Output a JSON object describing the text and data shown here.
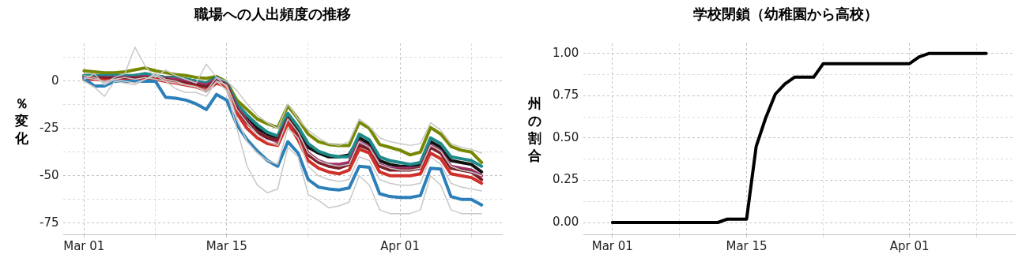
{
  "chart_data": [
    {
      "type": "line",
      "title": "職場への人出頻度の推移",
      "ylabel": "％変化",
      "legend": false,
      "grid": true,
      "marker": "none",
      "line_style": "solid",
      "x": [
        "--03-01",
        "--03-02",
        "--03-03",
        "--03-04",
        "--03-05",
        "--03-06",
        "--03-07",
        "--03-08",
        "--03-09",
        "--03-10",
        "--03-11",
        "--03-12",
        "--03-13",
        "--03-14",
        "--03-15",
        "--03-16",
        "--03-17",
        "--03-18",
        "--03-19",
        "--03-20",
        "--03-21",
        "--03-22",
        "--03-23",
        "--03-24",
        "--03-25",
        "--03-26",
        "--03-27",
        "--03-28",
        "--03-29",
        "--03-30",
        "--03-31",
        "--04-01",
        "--04-02",
        "--04-03",
        "--04-04",
        "--04-05",
        "--04-06",
        "--04-07",
        "--04-08",
        "--04-09"
      ],
      "xlim": [
        "--02-27",
        "--04-11"
      ],
      "xticks": [
        {
          "value": "--03-01",
          "label": "Mar 01"
        },
        {
          "value": "--03-08",
          "label": null
        },
        {
          "value": "--03-15",
          "label": "Mar 15"
        },
        {
          "value": "--03-23",
          "label": null
        },
        {
          "value": "--04-01",
          "label": "Apr 01"
        },
        {
          "value": "--04-08",
          "label": null
        }
      ],
      "ylim": [
        -81,
        20
      ],
      "yticks": [
        -75,
        {
          "value": -62.5,
          "label": null
        },
        -50,
        {
          "value": -37.5,
          "label": null
        },
        -25,
        {
          "value": -12.5,
          "label": null
        },
        0,
        {
          "value": 12.5,
          "label": null
        }
      ],
      "series": [
        {
          "color": "#c8c8c8",
          "values": [
            3,
            2,
            -1,
            2,
            4,
            18,
            8,
            2,
            6,
            3,
            1,
            -1,
            9,
            2,
            0,
            -5,
            -12,
            -18,
            -22,
            -25,
            -12,
            -20,
            -26,
            -30,
            -33,
            -34,
            -32,
            -20,
            -24,
            -30,
            -32,
            -33,
            -34,
            -33,
            -22,
            -26,
            -33,
            -35,
            -36,
            -38
          ]
        },
        {
          "color": "#c8c8c8",
          "values": [
            0,
            -3,
            -8,
            0,
            -1,
            -2,
            1,
            3,
            0,
            -4,
            -6,
            -6,
            -8,
            0,
            -5,
            -25,
            -45,
            -55,
            -59,
            -57,
            -35,
            -40,
            -60,
            -63,
            -67,
            -66,
            -64,
            -50,
            -55,
            -68,
            -70,
            -70,
            -70,
            -68,
            -50,
            -55,
            -68,
            -70,
            -70,
            -70
          ]
        },
        {
          "color": "#c8c8c8",
          "values": [
            1,
            4,
            -2,
            1,
            0,
            -1,
            1,
            4,
            1,
            0,
            -2,
            -3,
            -5,
            2,
            -3,
            -20,
            -32,
            -38,
            -42,
            -44,
            -25,
            -30,
            -45,
            -50,
            -52,
            -53,
            -52,
            -40,
            -42,
            -52,
            -54,
            -55,
            -55,
            -54,
            -40,
            -44,
            -54,
            -56,
            -57,
            -58
          ]
        },
        {
          "color": "#c8c8c8",
          "values": [
            2,
            1,
            0,
            1,
            2,
            1,
            2,
            1,
            0,
            -1,
            -2,
            -3,
            -6,
            0,
            -2,
            -15,
            -22,
            -28,
            -32,
            -34,
            -20,
            -27,
            -38,
            -42,
            -44,
            -45,
            -44,
            -32,
            -35,
            -44,
            -46,
            -47,
            -47,
            -46,
            -34,
            -37,
            -45,
            -47,
            -48,
            -50
          ]
        },
        {
          "color": "#2c7fb8",
          "values": [
            1.5,
            -2.5,
            -2.5,
            0,
            0,
            0,
            0,
            0,
            -8.5,
            -9,
            -10,
            -12,
            -15,
            -7,
            -10,
            -23,
            -31,
            -37,
            -42,
            -45,
            -32,
            -38,
            -52,
            -56,
            -57,
            -57.5,
            -56.5,
            -45,
            -45.5,
            -59.5,
            -61,
            -61.5,
            -61.5,
            -60.5,
            -46,
            -46.5,
            -61,
            -62.5,
            -62.5,
            -65.5
          ]
        },
        {
          "color": "#d0302a",
          "values": [
            1,
            1,
            0.5,
            0.5,
            0.5,
            0.5,
            1,
            1,
            0,
            -1,
            -2,
            -3,
            -5,
            -1,
            -3,
            -17,
            -25,
            -30,
            -33,
            -34,
            -22,
            -31,
            -42,
            -46,
            -48,
            -49,
            -47,
            -36,
            -38,
            -48,
            -50,
            -50,
            -50,
            -49,
            -38,
            -41,
            -49,
            -50,
            -51,
            -54
          ]
        },
        {
          "color": "#7a1f2a",
          "values": [
            2,
            2,
            1.5,
            1.5,
            1.5,
            1.5,
            2,
            2,
            1,
            0,
            -1,
            -2,
            -3,
            0,
            -2,
            -15,
            -22,
            -27,
            -30,
            -31,
            -20,
            -28,
            -39,
            -43,
            -45,
            -46,
            -44,
            -34,
            -36,
            -45,
            -47,
            -47,
            -47,
            -46,
            -35,
            -38,
            -46,
            -47,
            -48,
            -52
          ]
        },
        {
          "color": "#a0336a",
          "values": [
            2,
            2,
            2,
            2,
            2,
            2,
            2.5,
            2,
            1.5,
            1,
            0,
            -1,
            -2,
            1,
            -2,
            -14,
            -21,
            -27,
            -30,
            -32,
            -20,
            -28,
            -38,
            -42,
            -44,
            -44,
            -43,
            -32,
            -35,
            -44,
            -46,
            -46,
            -46,
            -46,
            -34,
            -37,
            -45,
            -46,
            -47,
            -50
          ]
        },
        {
          "color": "#1f8a8a",
          "values": [
            3,
            3,
            3,
            3,
            3,
            3,
            4,
            3,
            2,
            2,
            1,
            0,
            -1,
            2,
            -1,
            -12,
            -18,
            -23,
            -27,
            -29,
            -17,
            -24,
            -33,
            -37,
            -39,
            -40,
            -40,
            -28,
            -31,
            -40,
            -42,
            -43,
            -44,
            -43,
            -30,
            -33,
            -40,
            -41,
            -42,
            -45
          ]
        },
        {
          "color": "#111111",
          "values": [
            3,
            3,
            2.5,
            2.5,
            2.5,
            3,
            3.5,
            3,
            2,
            2,
            1,
            0,
            -1,
            2,
            -1,
            -13,
            -20,
            -25,
            -28,
            -30,
            -18,
            -26,
            -35,
            -38,
            -40,
            -40,
            -39,
            -30,
            -33,
            -42,
            -44,
            -45,
            -45,
            -44,
            -32,
            -35,
            -42,
            -43,
            -44,
            -48
          ]
        },
        {
          "color": "#778800",
          "values": [
            5.5,
            5,
            4.5,
            4.5,
            5,
            6,
            7,
            5.5,
            4.5,
            3.5,
            3,
            2,
            1.5,
            2.5,
            -0.4,
            -10,
            -15,
            -20,
            -22.5,
            -24.5,
            -13,
            -20,
            -28,
            -32,
            -33.5,
            -34,
            -34,
            -21.7,
            -25,
            -33.5,
            -35,
            -36.5,
            -39,
            -37.5,
            -24.5,
            -28,
            -34.5,
            -36.5,
            -37.5,
            -43
          ]
        }
      ]
    },
    {
      "type": "line",
      "title": "学校閉鎖（幼稚園から高校）",
      "ylabel": "州の割合",
      "legend": false,
      "grid": true,
      "marker": "none",
      "line_style": "solid",
      "x": [
        "--03-01",
        "--03-12",
        "--03-13",
        "--03-15",
        "--03-16",
        "--03-17",
        "--03-18",
        "--03-19",
        "--03-20",
        "--03-22",
        "--03-23",
        "--04-01",
        "--04-02",
        "--04-03",
        "--04-09"
      ],
      "xlim": [
        "--02-26",
        "--04-12"
      ],
      "xticks": [
        {
          "value": "--03-01",
          "label": "Mar 01"
        },
        {
          "value": "--03-08",
          "label": null
        },
        {
          "value": "--03-15",
          "label": "Mar 15"
        },
        {
          "value": "--03-23",
          "label": null
        },
        {
          "value": "--04-01",
          "label": "Apr 01"
        },
        {
          "value": "--04-08",
          "label": null
        }
      ],
      "ylim": [
        -0.07,
        1.06
      ],
      "yticks": [
        {
          "value": 0,
          "label": "0.00"
        },
        {
          "value": 0.125,
          "label": null
        },
        {
          "value": 0.25,
          "label": "0.25"
        },
        {
          "value": 0.375,
          "label": null
        },
        {
          "value": 0.5,
          "label": "0.50"
        },
        {
          "value": 0.625,
          "label": null
        },
        {
          "value": 0.75,
          "label": "0.75"
        },
        {
          "value": 0.875,
          "label": null
        },
        {
          "value": 1,
          "label": "1.00"
        }
      ],
      "series": [
        {
          "color": "#000000",
          "values": [
            0,
            0,
            0.02,
            0.02,
            0.45,
            0.62,
            0.76,
            0.82,
            0.86,
            0.86,
            0.94,
            0.94,
            0.98,
            1,
            1
          ]
        }
      ]
    }
  ]
}
